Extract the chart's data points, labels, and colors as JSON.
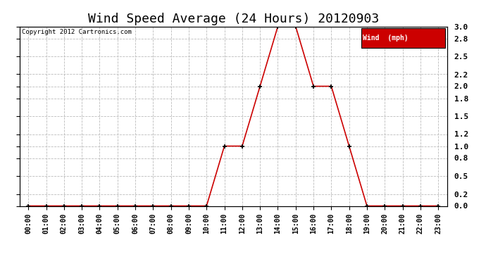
{
  "title": "Wind Speed Average (24 Hours) 20120903",
  "copyright_text": "Copyright 2012 Cartronics.com",
  "legend_label": "Wind  (mph)",
  "x_labels": [
    "00:00",
    "01:00",
    "02:00",
    "03:00",
    "04:00",
    "05:00",
    "06:00",
    "07:00",
    "08:00",
    "09:00",
    "10:00",
    "11:00",
    "12:00",
    "13:00",
    "14:00",
    "15:00",
    "16:00",
    "17:00",
    "18:00",
    "19:00",
    "20:00",
    "21:00",
    "22:00",
    "23:00"
  ],
  "hours": [
    0,
    1,
    2,
    3,
    4,
    5,
    6,
    7,
    8,
    9,
    10,
    11,
    12,
    13,
    14,
    15,
    16,
    17,
    18,
    19,
    20,
    21,
    22,
    23
  ],
  "values": [
    0.0,
    0.0,
    0.0,
    0.0,
    0.0,
    0.0,
    0.0,
    0.0,
    0.0,
    0.0,
    0.0,
    1.0,
    1.0,
    2.0,
    3.0,
    3.0,
    2.0,
    2.0,
    1.0,
    0.0,
    0.0,
    0.0,
    0.0,
    0.0
  ],
  "line_color": "#cc0000",
  "marker_color": "#000000",
  "bg_color": "#ffffff",
  "grid_color": "#bbbbbb",
  "ylim": [
    0.0,
    3.0
  ],
  "yticks": [
    0.0,
    0.2,
    0.5,
    0.8,
    1.0,
    1.2,
    1.5,
    1.8,
    2.0,
    2.2,
    2.5,
    2.8,
    3.0
  ],
  "title_fontsize": 13,
  "legend_bg": "#cc0000",
  "legend_text_color": "#ffffff"
}
